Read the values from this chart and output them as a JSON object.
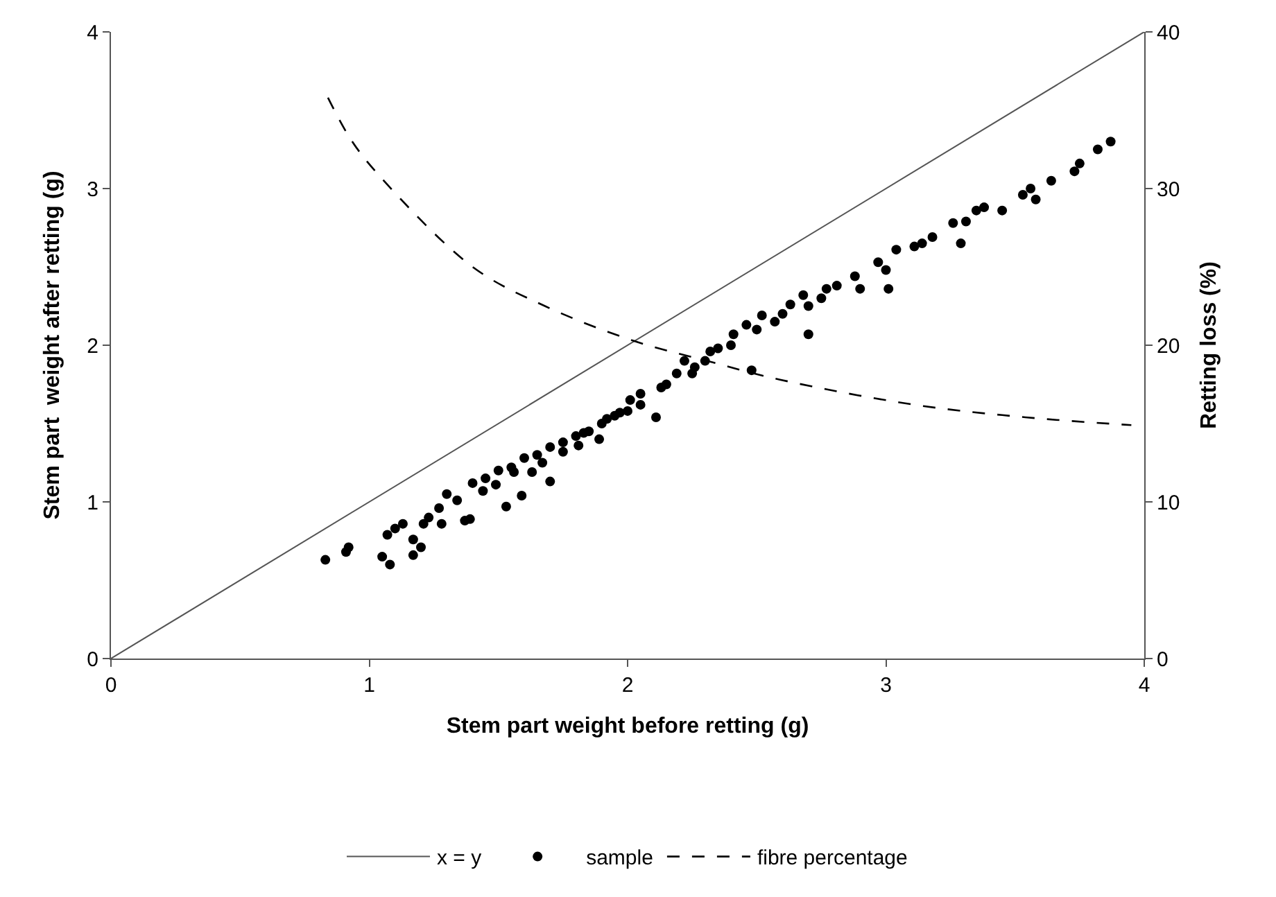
{
  "chart_data": {
    "type": "scatter",
    "xlabel": "Stem part weight before retting (g)",
    "ylabel": "Stem part  weight after retting (g)",
    "y2label": "Retting loss (%)",
    "xlim": [
      0,
      4
    ],
    "xticks": [
      0,
      1,
      2,
      3,
      4
    ],
    "ylim": [
      0,
      4
    ],
    "yticks": [
      0,
      1,
      2,
      3,
      4
    ],
    "y2lim": [
      0,
      40
    ],
    "y2ticks": [
      0,
      10,
      20,
      30,
      40
    ],
    "legend": "bottom",
    "series": [
      {
        "name": "x = y",
        "type": "line",
        "color": "#555555",
        "line_style": "solid",
        "marker": "none",
        "x": [
          0,
          4
        ],
        "values": [
          0,
          4
        ]
      },
      {
        "name": "sample",
        "color": "#000000",
        "marker": "circle",
        "x": [
          0.83,
          0.91,
          0.92,
          1.05,
          1.08,
          1.07,
          1.1,
          1.13,
          1.17,
          1.2,
          1.17,
          1.21,
          1.23,
          1.27,
          1.28,
          1.34,
          1.39,
          1.37,
          1.44,
          1.49,
          1.53,
          1.56,
          1.59,
          1.63,
          1.67,
          1.7,
          1.75,
          1.81,
          1.83,
          1.89,
          1.92,
          1.97,
          2.01,
          2.05,
          2.11,
          2.13,
          2.19,
          2.22,
          2.26,
          2.32,
          2.35,
          2.41,
          2.46,
          2.48,
          2.52,
          2.57,
          2.63,
          2.68,
          2.7,
          2.77,
          2.81,
          2.88,
          2.9,
          2.97,
          3.0,
          3.01,
          3.04,
          3.11,
          3.14,
          3.18,
          3.26,
          3.29,
          3.31,
          3.35,
          3.38,
          3.45,
          3.53,
          3.56,
          3.58,
          3.64,
          3.73,
          3.75,
          3.82,
          3.87,
          1.3,
          1.4,
          1.5,
          1.6,
          1.7,
          1.8,
          1.9,
          2.0,
          1.45,
          1.55,
          1.65,
          1.75,
          1.85,
          1.95,
          2.05,
          2.15,
          2.25,
          2.3,
          2.4,
          2.5,
          2.6,
          2.7,
          2.75
        ],
        "values": [
          0.63,
          0.68,
          0.71,
          0.65,
          0.6,
          0.79,
          0.83,
          0.86,
          0.76,
          0.71,
          0.66,
          0.86,
          0.9,
          0.96,
          0.86,
          1.01,
          0.89,
          0.88,
          1.07,
          1.11,
          0.97,
          1.19,
          1.04,
          1.19,
          1.25,
          1.13,
          1.32,
          1.36,
          1.44,
          1.4,
          1.53,
          1.57,
          1.65,
          1.69,
          1.54,
          1.73,
          1.82,
          1.9,
          1.86,
          1.96,
          1.98,
          2.07,
          2.13,
          1.84,
          2.19,
          2.15,
          2.26,
          2.32,
          2.07,
          2.36,
          2.38,
          2.44,
          2.36,
          2.53,
          2.48,
          2.36,
          2.61,
          2.63,
          2.65,
          2.69,
          2.78,
          2.65,
          2.79,
          2.86,
          2.88,
          2.86,
          2.96,
          3.0,
          2.93,
          3.05,
          3.11,
          3.16,
          3.25,
          3.3,
          1.05,
          1.12,
          1.2,
          1.28,
          1.35,
          1.42,
          1.5,
          1.58,
          1.15,
          1.22,
          1.3,
          1.38,
          1.45,
          1.55,
          1.62,
          1.75,
          1.82,
          1.9,
          2.0,
          2.1,
          2.2,
          2.25,
          2.3
        ]
      },
      {
        "name": "fibre percentage",
        "type": "line",
        "axis": "y2",
        "color": "#000000",
        "line_style": "dashed",
        "marker": "none",
        "x": [
          0.84,
          0.93,
          1.04,
          1.4,
          1.68,
          2.02,
          2.33,
          2.59,
          3.11,
          3.54,
          3.95
        ],
        "values": [
          35.8,
          33.1,
          30.8,
          25.0,
          22.5,
          20.3,
          18.9,
          17.8,
          16.2,
          15.4,
          14.9
        ]
      }
    ]
  }
}
